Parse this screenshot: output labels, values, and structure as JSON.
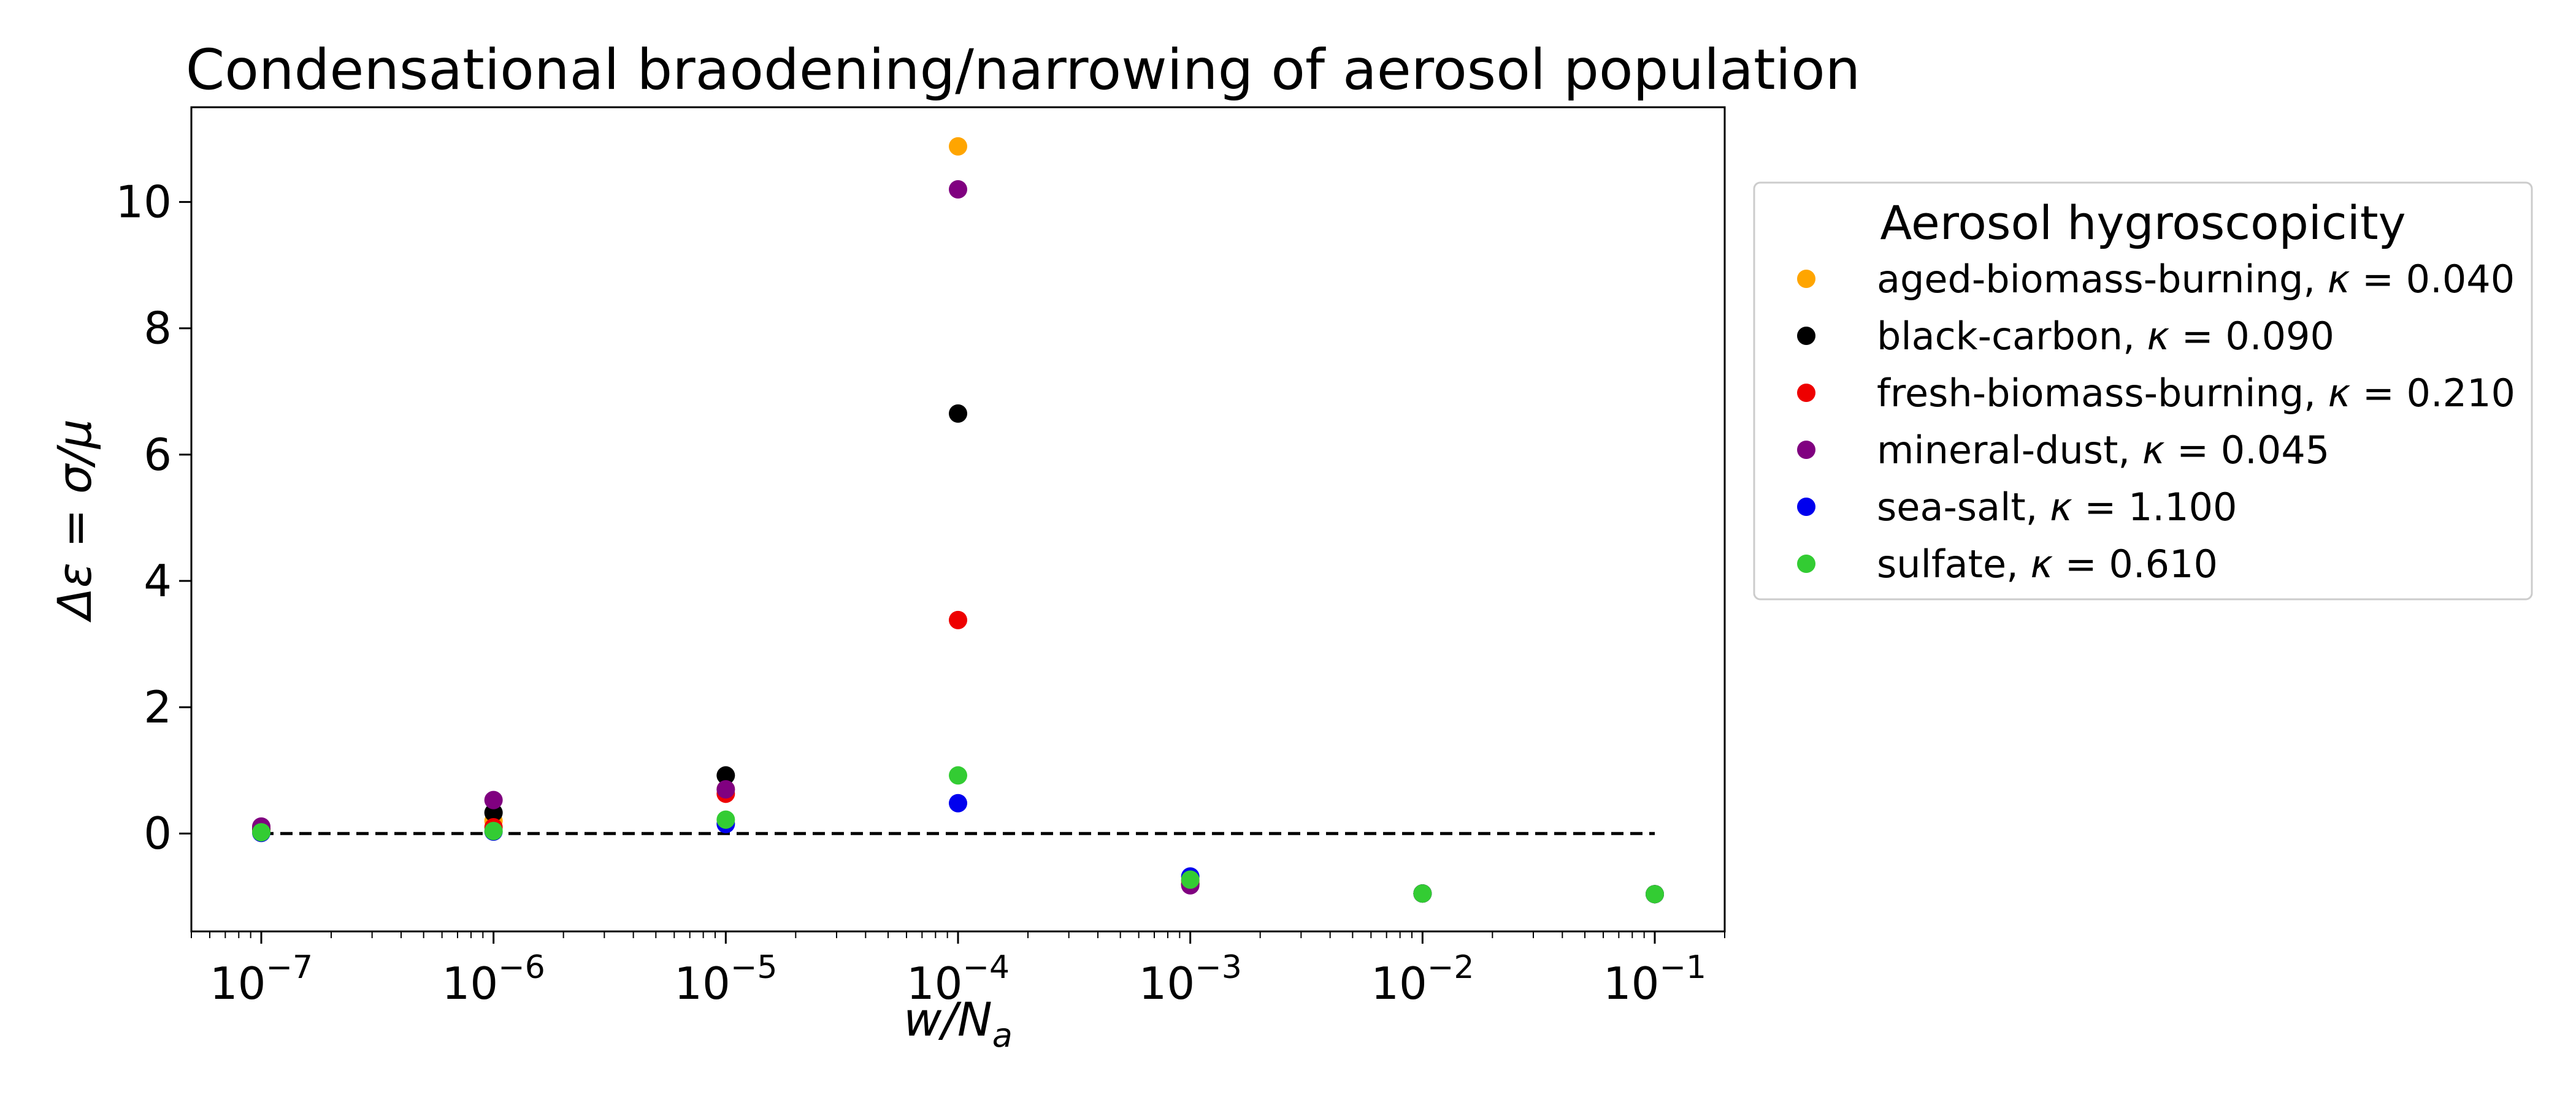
{
  "chart_data": {
    "type": "scatter",
    "title": "Condensational braodening/narrowing of aerosol population",
    "xlabel": "w/N_a",
    "ylabel": "Δε = σ/μ",
    "xscale": "log",
    "xlim": [
      5e-08,
      0.2
    ],
    "ylim": [
      -1.55,
      11.5
    ],
    "x_ticks": [
      1e-07,
      1e-06,
      1e-05,
      0.0001,
      0.001,
      0.01,
      0.1
    ],
    "x_tick_labels": [
      "10^-7",
      "10^-6",
      "10^-5",
      "10^-4",
      "10^-3",
      "10^-2",
      "10^-1"
    ],
    "y_ticks": [
      0,
      2,
      4,
      6,
      8,
      10
    ],
    "y_tick_labels": [
      "0",
      "2",
      "4",
      "6",
      "8",
      "10"
    ],
    "grid": false,
    "legend": {
      "title": "Aerosol hygroscopicity",
      "placement": "outside right, top"
    },
    "reference_line": {
      "y": 0,
      "style": "dashed",
      "color": "#000000",
      "x_range": [
        1e-07,
        0.1
      ]
    },
    "x": [
      1e-07,
      1e-06,
      1e-05,
      0.0001,
      0.001,
      0.01,
      0.1
    ],
    "series": [
      {
        "name": "aged-biomass-burning",
        "kappa": "0.040",
        "color": "#FFA500",
        "values": [
          0.1,
          0.2,
          0.7,
          10.88,
          -0.8,
          -0.95,
          -0.96
        ]
      },
      {
        "name": "black-carbon",
        "kappa": "0.090",
        "color": "#000000",
        "values": [
          0.07,
          0.33,
          0.92,
          6.65,
          -0.8,
          -0.95,
          -0.96
        ]
      },
      {
        "name": "fresh-biomass-burning",
        "kappa": "0.210",
        "color": "#EE0000",
        "values": [
          0.03,
          0.1,
          0.63,
          3.38,
          -0.75,
          -0.95,
          -0.96
        ]
      },
      {
        "name": "mineral-dust",
        "kappa": "0.045",
        "color": "#800080",
        "values": [
          0.11,
          0.53,
          0.7,
          10.2,
          -0.82,
          -0.95,
          -0.96
        ]
      },
      {
        "name": "sea-salt",
        "kappa": "1.100",
        "color": "#0000EE",
        "values": [
          0.01,
          0.03,
          0.15,
          0.48,
          -0.68,
          -0.95,
          -0.96
        ]
      },
      {
        "name": "sulfate",
        "kappa": "0.610",
        "color": "#33CC33",
        "values": [
          0.02,
          0.04,
          0.22,
          0.92,
          -0.73,
          -0.95,
          -0.96
        ]
      }
    ]
  }
}
